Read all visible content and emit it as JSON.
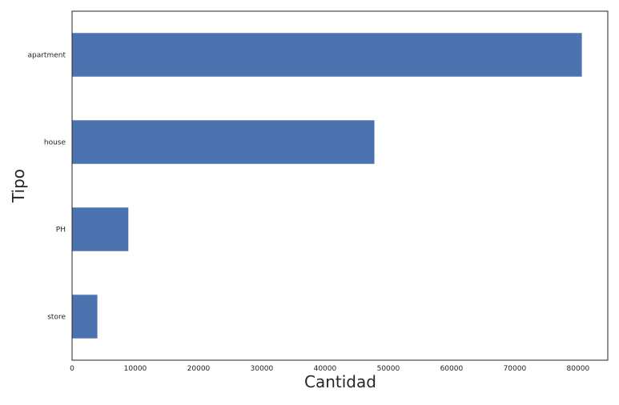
{
  "chart_data": {
    "type": "bar",
    "orientation": "horizontal",
    "categories": [
      "apartment",
      "house",
      "PH",
      "store"
    ],
    "values": [
      80600,
      47800,
      8900,
      4000
    ],
    "xlabel": "Cantidad",
    "ylabel": "Tipo",
    "xlim": [
      0,
      84700
    ],
    "xticks": [
      0,
      10000,
      20000,
      30000,
      40000,
      50000,
      60000,
      70000,
      80000
    ],
    "grid": false,
    "legend": "none",
    "colors": {
      "bar": "#4c72b0",
      "frame": "#262626"
    }
  }
}
